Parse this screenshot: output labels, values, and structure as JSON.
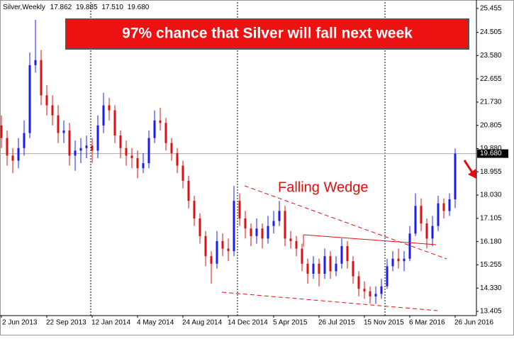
{
  "chart_data": {
    "type": "candlestick",
    "symbol": "Silver,Weekly",
    "title": "97% chance that Silver will fall next week",
    "annotation": "Falling Wedge",
    "categories": [
      "2 Jun 2013",
      null,
      null,
      null,
      null,
      null,
      null,
      null,
      "22 Sep 2013",
      null,
      null,
      null,
      null,
      null,
      null,
      null,
      "12 Jan 2014",
      null,
      null,
      null,
      null,
      null,
      null,
      null,
      "4 May 2014",
      null,
      null,
      null,
      null,
      null,
      null,
      null,
      "24 Aug 2014",
      null,
      null,
      null,
      null,
      null,
      null,
      null,
      "14 Dec 2014",
      null,
      null,
      null,
      null,
      null,
      null,
      null,
      "5 Apr 2015",
      null,
      null,
      null,
      null,
      null,
      null,
      null,
      "26 Jul 2015",
      null,
      null,
      null,
      null,
      null,
      null,
      null,
      "15 Nov 2015",
      null,
      null,
      null,
      null,
      null,
      null,
      null,
      "6 Mar 2016",
      null,
      null,
      null,
      null,
      null,
      null,
      null,
      "26 Jun 2016"
    ],
    "open": [
      20.8,
      20.3,
      19.6,
      19.4,
      19.9,
      20.5,
      23.2,
      23.4,
      22.0,
      21.6,
      21.2,
      20.5,
      20.6,
      19.6,
      19.8,
      19.9,
      20.0,
      19.8,
      20.8,
      21.6,
      21.4,
      20.4,
      19.9,
      19.6,
      19.5,
      19.1,
      19.3,
      20.3,
      21.0,
      20.9,
      20.1,
      19.7,
      19.2,
      18.6,
      17.8,
      17.1,
      16.4,
      15.6,
      15.3,
      16.2,
      15.9,
      15.8,
      17.8,
      17.1,
      16.7,
      16.4,
      16.7,
      16.3,
      16.8,
      17.0,
      17.4,
      16.3,
      16.2,
      15.9,
      15.3,
      14.9,
      15.3,
      14.9,
      15.6,
      15.0,
      15.3,
      16.0,
      15.4,
      14.8,
      14.3,
      14.2,
      14.0,
      14.1,
      14.4,
      15.2,
      15.5,
      15.4,
      15.5,
      16.5,
      17.6,
      16.9,
      16.3,
      16.8,
      17.7,
      17.4,
      17.862
    ],
    "high": [
      21.2,
      20.6,
      19.9,
      20.3,
      21.0,
      23.7,
      25.0,
      23.8,
      22.4,
      22.0,
      21.6,
      21.0,
      20.9,
      20.2,
      20.3,
      20.4,
      20.3,
      21.2,
      22.1,
      21.9,
      21.6,
      20.6,
      20.2,
      19.9,
      19.8,
      19.7,
      20.6,
      21.4,
      21.5,
      21.1,
      20.3,
      19.9,
      19.4,
      18.8,
      18.0,
      17.3,
      16.6,
      15.8,
      16.6,
      16.5,
      16.3,
      18.4,
      18.1,
      17.4,
      16.9,
      17.1,
      16.9,
      17.2,
      17.4,
      17.8,
      17.6,
      16.6,
      16.4,
      16.1,
      15.5,
      15.6,
      15.5,
      15.9,
      15.8,
      15.6,
      16.3,
      16.2,
      15.6,
      15.0,
      14.6,
      14.4,
      14.4,
      14.7,
      15.5,
      15.8,
      15.9,
      15.8,
      16.8,
      18.1,
      17.9,
      17.1,
      17.2,
      18.0,
      17.9,
      18.1,
      19.885
    ],
    "low": [
      19.9,
      19.2,
      18.9,
      19.1,
      19.6,
      20.3,
      22.9,
      21.6,
      21.2,
      20.8,
      20.1,
      20.1,
      19.2,
      19.0,
      19.3,
      19.5,
      19.3,
      19.5,
      20.5,
      21.0,
      20.1,
      19.5,
      19.2,
      19.1,
      18.7,
      18.9,
      19.1,
      20.1,
      20.6,
      19.8,
      19.4,
      18.9,
      18.3,
      17.5,
      16.8,
      16.1,
      15.2,
      14.5,
      15.1,
      15.6,
      15.4,
      15.6,
      16.8,
      16.3,
      16.0,
      16.1,
      15.9,
      16.1,
      16.5,
      16.8,
      16.0,
      15.9,
      15.6,
      15.0,
      14.5,
      14.7,
      14.4,
      14.7,
      14.7,
      14.8,
      15.1,
      15.1,
      14.5,
      14.0,
      13.9,
      13.7,
      13.7,
      13.9,
      14.3,
      15.0,
      15.1,
      15.0,
      15.4,
      16.4,
      16.6,
      15.9,
      16.0,
      16.6,
      17.1,
      17.2,
      17.51
    ],
    "close": [
      20.3,
      19.6,
      19.4,
      19.9,
      20.5,
      23.2,
      23.4,
      22.0,
      21.6,
      21.2,
      20.5,
      20.6,
      19.6,
      19.8,
      19.9,
      20.0,
      19.8,
      20.8,
      21.6,
      21.4,
      20.4,
      19.9,
      19.6,
      19.5,
      19.1,
      19.3,
      20.3,
      21.0,
      20.9,
      20.1,
      19.7,
      19.2,
      18.6,
      17.8,
      17.1,
      16.4,
      15.6,
      15.3,
      16.2,
      15.9,
      15.8,
      17.8,
      17.1,
      16.7,
      16.4,
      16.7,
      16.3,
      16.8,
      17.0,
      17.4,
      16.3,
      16.2,
      15.9,
      15.3,
      14.9,
      15.3,
      14.9,
      15.6,
      15.0,
      15.3,
      16.0,
      15.4,
      14.8,
      14.3,
      14.2,
      14.0,
      14.1,
      14.4,
      15.2,
      15.5,
      15.4,
      15.5,
      16.5,
      17.6,
      16.9,
      16.3,
      16.8,
      17.7,
      17.4,
      17.862,
      19.68
    ],
    "up_color": "#1c1cf0",
    "down_color": "#e01010",
    "ylim": [
      13.235,
      25.735
    ],
    "yticks": [
      13.405,
      {
        "value": 14.33,
        "label": "14.330"
      },
      15.255,
      {
        "value": 16.18,
        "label": "16.180"
      },
      17.105,
      {
        "value": 18.03,
        "label": "18.030"
      },
      18.955,
      {
        "value": 19.88,
        "label": "19.880"
      },
      20.805,
      {
        "value": 21.73,
        "label": "21.730"
      },
      22.655,
      {
        "value": 23.58,
        "label": "23.580"
      },
      24.505,
      25.455
    ]
  }
}
